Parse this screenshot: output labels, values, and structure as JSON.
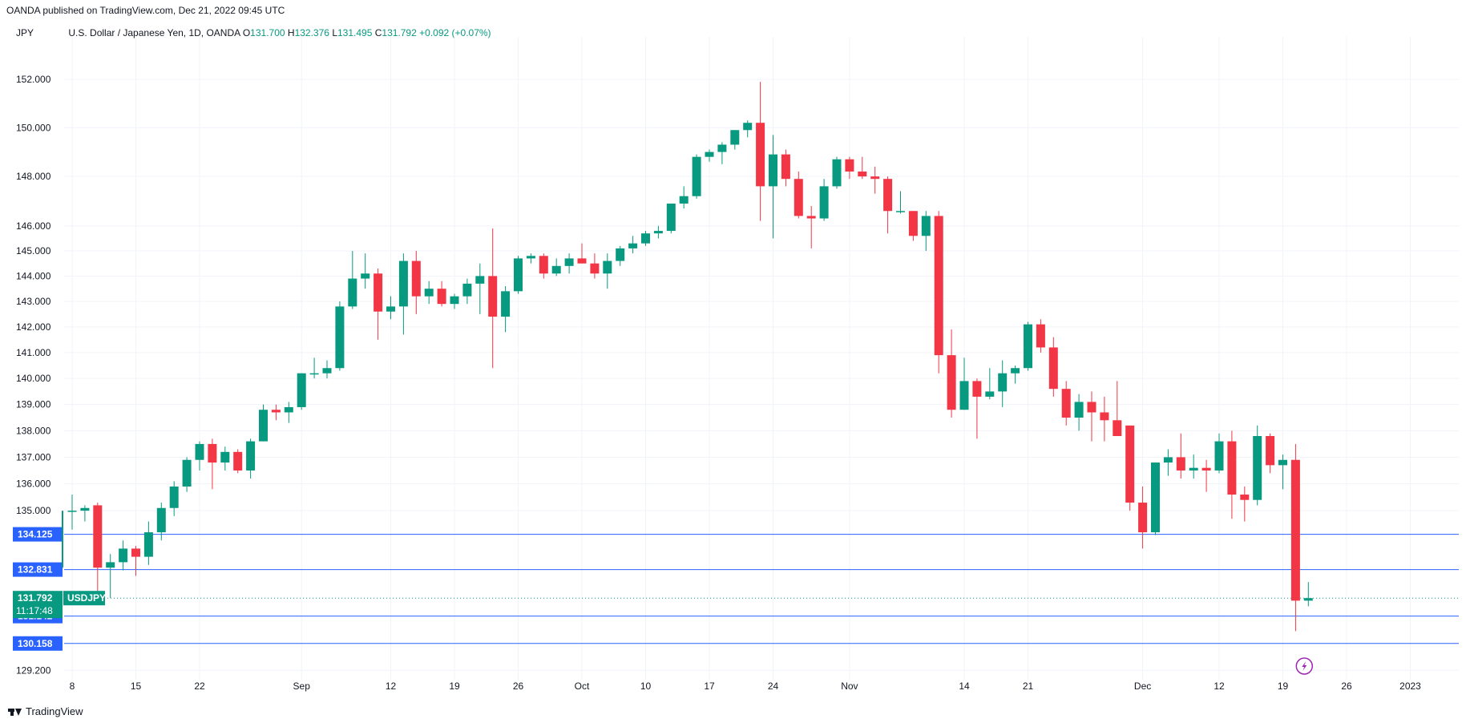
{
  "header": {
    "published": "OANDA published on TradingView.com, Dec 21, 2022 09:45 UTC",
    "unit": "JPY",
    "symbol": "U.S. Dollar / Japanese Yen, 1D, OANDA",
    "o_label": "O",
    "o_value": "131.700",
    "h_label": "H",
    "h_value": "132.376",
    "l_label": "L",
    "l_value": "131.495",
    "c_label": "C",
    "c_value": "131.792",
    "change": "+0.092 (+0.07%)"
  },
  "footer": {
    "brand": "TradingView"
  },
  "colors": {
    "up": "#089981",
    "down": "#f23645",
    "level": "#2962ff",
    "grid": "#f0f3fa"
  },
  "chart_data": {
    "type": "candlestick",
    "title": "U.S. Dollar / Japanese Yen, 1D, OANDA",
    "ylabel": "JPY",
    "ylim": [
      128.3,
      154.2
    ],
    "scale": "log",
    "y_ticks": [
      "152.000",
      "150.000",
      "148.000",
      "146.000",
      "145.000",
      "144.000",
      "143.000",
      "142.000",
      "141.000",
      "140.000",
      "139.000",
      "138.000",
      "137.000",
      "136.000",
      "135.000",
      "129.200"
    ],
    "x_ticks": [
      {
        "label": "8",
        "i": 0
      },
      {
        "label": "15",
        "i": 5
      },
      {
        "label": "22",
        "i": 10
      },
      {
        "label": "Sep",
        "i": 18
      },
      {
        "label": "12",
        "i": 25
      },
      {
        "label": "19",
        "i": 30
      },
      {
        "label": "26",
        "i": 35
      },
      {
        "label": "Oct",
        "i": 40
      },
      {
        "label": "10",
        "i": 45
      },
      {
        "label": "17",
        "i": 50
      },
      {
        "label": "24",
        "i": 55
      },
      {
        "label": "Nov",
        "i": 61
      },
      {
        "label": "14",
        "i": 70
      },
      {
        "label": "21",
        "i": 75
      },
      {
        "label": "Dec",
        "i": 84
      },
      {
        "label": "12",
        "i": 90
      },
      {
        "label": "19",
        "i": 95
      },
      {
        "label": "26",
        "i": 100
      },
      {
        "label": "2023",
        "i": 105
      }
    ],
    "horizontal_levels": [
      "134.125",
      "132.831",
      "131.142",
      "130.158"
    ],
    "last_price": {
      "value": "131.792",
      "symbol": "USDJPY",
      "countdown": "11:17:48"
    },
    "candles": [
      {
        "date": "2022-08-08",
        "o": 135.0,
        "h": 135.6,
        "l": 134.3,
        "c": 135.0
      },
      {
        "date": "2022-08-09",
        "o": 135.0,
        "h": 135.2,
        "l": 134.6,
        "c": 135.1
      },
      {
        "date": "2022-08-10",
        "o": 135.2,
        "h": 135.3,
        "l": 132.0,
        "c": 132.9
      },
      {
        "date": "2022-08-11",
        "o": 132.9,
        "h": 133.4,
        "l": 131.8,
        "c": 133.1
      },
      {
        "date": "2022-08-12",
        "o": 133.1,
        "h": 133.9,
        "l": 132.8,
        "c": 133.6
      },
      {
        "date": "2022-08-15",
        "o": 133.6,
        "h": 133.7,
        "l": 132.6,
        "c": 133.3
      },
      {
        "date": "2022-08-16",
        "o": 133.3,
        "h": 134.6,
        "l": 133.0,
        "c": 134.2
      },
      {
        "date": "2022-08-17",
        "o": 134.2,
        "h": 135.3,
        "l": 133.9,
        "c": 135.1
      },
      {
        "date": "2022-08-18",
        "o": 135.1,
        "h": 136.1,
        "l": 134.8,
        "c": 135.9
      },
      {
        "date": "2022-08-19",
        "o": 135.9,
        "h": 137.0,
        "l": 135.7,
        "c": 136.9
      },
      {
        "date": "2022-08-22",
        "o": 136.9,
        "h": 137.6,
        "l": 136.5,
        "c": 137.5
      },
      {
        "date": "2022-08-23",
        "o": 137.5,
        "h": 137.7,
        "l": 135.8,
        "c": 136.8
      },
      {
        "date": "2022-08-24",
        "o": 136.8,
        "h": 137.4,
        "l": 136.5,
        "c": 137.2
      },
      {
        "date": "2022-08-25",
        "o": 137.2,
        "h": 137.3,
        "l": 136.4,
        "c": 136.5
      },
      {
        "date": "2022-08-26",
        "o": 136.5,
        "h": 137.7,
        "l": 136.2,
        "c": 137.6
      },
      {
        "date": "2022-08-29",
        "o": 137.6,
        "h": 139.0,
        "l": 137.6,
        "c": 138.8
      },
      {
        "date": "2022-08-30",
        "o": 138.8,
        "h": 139.0,
        "l": 138.4,
        "c": 138.7
      },
      {
        "date": "2022-08-31",
        "o": 138.7,
        "h": 139.1,
        "l": 138.3,
        "c": 138.9
      },
      {
        "date": "2022-09-01",
        "o": 138.9,
        "h": 140.2,
        "l": 138.8,
        "c": 140.2
      },
      {
        "date": "2022-09-02",
        "o": 140.2,
        "h": 140.8,
        "l": 140.0,
        "c": 140.2
      },
      {
        "date": "2022-09-05",
        "o": 140.2,
        "h": 140.7,
        "l": 140.0,
        "c": 140.4
      },
      {
        "date": "2022-09-06",
        "o": 140.4,
        "h": 143.0,
        "l": 140.3,
        "c": 142.8
      },
      {
        "date": "2022-09-07",
        "o": 142.8,
        "h": 145.0,
        "l": 142.7,
        "c": 143.9
      },
      {
        "date": "2022-09-08",
        "o": 143.9,
        "h": 144.9,
        "l": 143.5,
        "c": 144.1
      },
      {
        "date": "2022-09-09",
        "o": 144.1,
        "h": 144.3,
        "l": 141.5,
        "c": 142.6
      },
      {
        "date": "2022-09-12",
        "o": 142.6,
        "h": 143.2,
        "l": 142.3,
        "c": 142.8
      },
      {
        "date": "2022-09-13",
        "o": 142.8,
        "h": 144.9,
        "l": 141.7,
        "c": 144.6
      },
      {
        "date": "2022-09-14",
        "o": 144.6,
        "h": 145.0,
        "l": 142.5,
        "c": 143.2
      },
      {
        "date": "2022-09-15",
        "o": 143.2,
        "h": 143.8,
        "l": 142.9,
        "c": 143.5
      },
      {
        "date": "2022-09-16",
        "o": 143.5,
        "h": 143.8,
        "l": 142.8,
        "c": 142.9
      },
      {
        "date": "2022-09-19",
        "o": 142.9,
        "h": 143.3,
        "l": 142.7,
        "c": 143.2
      },
      {
        "date": "2022-09-20",
        "o": 143.2,
        "h": 143.9,
        "l": 142.9,
        "c": 143.7
      },
      {
        "date": "2022-09-21",
        "o": 143.7,
        "h": 144.5,
        "l": 142.5,
        "c": 144.0
      },
      {
        "date": "2022-09-22",
        "o": 144.0,
        "h": 145.9,
        "l": 140.4,
        "c": 142.4
      },
      {
        "date": "2022-09-23",
        "o": 142.4,
        "h": 143.6,
        "l": 141.8,
        "c": 143.4
      },
      {
        "date": "2022-09-26",
        "o": 143.4,
        "h": 144.8,
        "l": 143.3,
        "c": 144.7
      },
      {
        "date": "2022-09-27",
        "o": 144.7,
        "h": 144.9,
        "l": 144.5,
        "c": 144.8
      },
      {
        "date": "2022-09-28",
        "o": 144.8,
        "h": 144.9,
        "l": 143.9,
        "c": 144.1
      },
      {
        "date": "2022-09-29",
        "o": 144.1,
        "h": 144.7,
        "l": 144.0,
        "c": 144.4
      },
      {
        "date": "2022-09-30",
        "o": 144.4,
        "h": 144.9,
        "l": 144.1,
        "c": 144.7
      },
      {
        "date": "2022-10-03",
        "o": 144.7,
        "h": 145.3,
        "l": 144.5,
        "c": 144.5
      },
      {
        "date": "2022-10-04",
        "o": 144.5,
        "h": 144.9,
        "l": 143.9,
        "c": 144.1
      },
      {
        "date": "2022-10-05",
        "o": 144.1,
        "h": 144.9,
        "l": 143.5,
        "c": 144.6
      },
      {
        "date": "2022-10-06",
        "o": 144.6,
        "h": 145.2,
        "l": 144.4,
        "c": 145.1
      },
      {
        "date": "2022-10-07",
        "o": 145.1,
        "h": 145.6,
        "l": 144.9,
        "c": 145.3
      },
      {
        "date": "2022-10-10",
        "o": 145.3,
        "h": 145.8,
        "l": 145.2,
        "c": 145.7
      },
      {
        "date": "2022-10-11",
        "o": 145.7,
        "h": 146.0,
        "l": 145.5,
        "c": 145.8
      },
      {
        "date": "2022-10-12",
        "o": 145.8,
        "h": 146.9,
        "l": 145.7,
        "c": 146.9
      },
      {
        "date": "2022-10-13",
        "o": 146.9,
        "h": 147.6,
        "l": 146.7,
        "c": 147.2
      },
      {
        "date": "2022-10-14",
        "o": 147.2,
        "h": 148.9,
        "l": 147.1,
        "c": 148.8
      },
      {
        "date": "2022-10-17",
        "o": 148.8,
        "h": 149.1,
        "l": 148.6,
        "c": 149.0
      },
      {
        "date": "2022-10-18",
        "o": 149.0,
        "h": 149.4,
        "l": 148.5,
        "c": 149.3
      },
      {
        "date": "2022-10-19",
        "o": 149.3,
        "h": 149.9,
        "l": 149.1,
        "c": 149.9
      },
      {
        "date": "2022-10-20",
        "o": 149.9,
        "h": 150.3,
        "l": 149.6,
        "c": 150.2
      },
      {
        "date": "2022-10-21",
        "o": 150.2,
        "h": 151.9,
        "l": 146.2,
        "c": 147.6
      },
      {
        "date": "2022-10-24",
        "o": 147.6,
        "h": 149.7,
        "l": 145.5,
        "c": 148.9
      },
      {
        "date": "2022-10-25",
        "o": 148.9,
        "h": 149.1,
        "l": 147.6,
        "c": 147.9
      },
      {
        "date": "2022-10-26",
        "o": 147.9,
        "h": 148.2,
        "l": 146.3,
        "c": 146.4
      },
      {
        "date": "2022-10-27",
        "o": 146.4,
        "h": 146.8,
        "l": 145.1,
        "c": 146.3
      },
      {
        "date": "2022-10-28",
        "o": 146.3,
        "h": 147.9,
        "l": 146.2,
        "c": 147.6
      },
      {
        "date": "2022-10-31",
        "o": 147.6,
        "h": 148.8,
        "l": 147.5,
        "c": 148.7
      },
      {
        "date": "2022-11-01",
        "o": 148.7,
        "h": 148.8,
        "l": 147.9,
        "c": 148.2
      },
      {
        "date": "2022-11-02",
        "o": 148.2,
        "h": 148.8,
        "l": 147.9,
        "c": 148.0
      },
      {
        "date": "2022-11-03",
        "o": 148.0,
        "h": 148.4,
        "l": 147.3,
        "c": 147.9
      },
      {
        "date": "2022-11-04",
        "o": 147.9,
        "h": 148.0,
        "l": 145.7,
        "c": 146.6
      },
      {
        "date": "2022-11-07",
        "o": 146.6,
        "h": 147.4,
        "l": 146.5,
        "c": 146.6
      },
      {
        "date": "2022-11-08",
        "o": 146.6,
        "h": 146.6,
        "l": 145.4,
        "c": 145.6
      },
      {
        "date": "2022-11-09",
        "o": 145.6,
        "h": 146.6,
        "l": 145.0,
        "c": 146.4
      },
      {
        "date": "2022-11-10",
        "o": 146.4,
        "h": 146.6,
        "l": 140.2,
        "c": 140.9
      },
      {
        "date": "2022-11-11",
        "o": 140.9,
        "h": 141.9,
        "l": 138.5,
        "c": 138.8
      },
      {
        "date": "2022-11-14",
        "o": 138.8,
        "h": 140.8,
        "l": 138.8,
        "c": 139.9
      },
      {
        "date": "2022-11-15",
        "o": 139.9,
        "h": 140.0,
        "l": 137.7,
        "c": 139.3
      },
      {
        "date": "2022-11-16",
        "o": 139.3,
        "h": 140.4,
        "l": 139.2,
        "c": 139.5
      },
      {
        "date": "2022-11-17",
        "o": 139.5,
        "h": 140.7,
        "l": 138.9,
        "c": 140.2
      },
      {
        "date": "2022-11-18",
        "o": 140.2,
        "h": 140.5,
        "l": 139.8,
        "c": 140.4
      },
      {
        "date": "2022-11-21",
        "o": 140.4,
        "h": 142.2,
        "l": 140.3,
        "c": 142.1
      },
      {
        "date": "2022-11-22",
        "o": 142.1,
        "h": 142.3,
        "l": 141.0,
        "c": 141.2
      },
      {
        "date": "2022-11-23",
        "o": 141.2,
        "h": 141.6,
        "l": 139.3,
        "c": 139.6
      },
      {
        "date": "2022-11-24",
        "o": 139.6,
        "h": 139.9,
        "l": 138.2,
        "c": 138.5
      },
      {
        "date": "2022-11-25",
        "o": 138.5,
        "h": 139.4,
        "l": 138.0,
        "c": 139.1
      },
      {
        "date": "2022-11-28",
        "o": 139.1,
        "h": 139.5,
        "l": 137.6,
        "c": 138.7
      },
      {
        "date": "2022-11-29",
        "o": 138.7,
        "h": 139.3,
        "l": 137.6,
        "c": 138.4
      },
      {
        "date": "2022-11-30",
        "o": 138.4,
        "h": 139.9,
        "l": 137.8,
        "c": 137.8
      },
      {
        "date": "2022-12-01",
        "o": 138.2,
        "h": 138.2,
        "l": 135.0,
        "c": 135.3
      },
      {
        "date": "2022-12-02",
        "o": 135.3,
        "h": 135.9,
        "l": 133.6,
        "c": 134.2
      },
      {
        "date": "2022-12-05",
        "o": 134.2,
        "h": 136.8,
        "l": 134.1,
        "c": 136.8
      },
      {
        "date": "2022-12-06",
        "o": 136.8,
        "h": 137.3,
        "l": 136.3,
        "c": 137.0
      },
      {
        "date": "2022-12-07",
        "o": 137.0,
        "h": 137.9,
        "l": 136.2,
        "c": 136.5
      },
      {
        "date": "2022-12-08",
        "o": 136.5,
        "h": 137.1,
        "l": 136.2,
        "c": 136.6
      },
      {
        "date": "2022-12-09",
        "o": 136.6,
        "h": 136.9,
        "l": 135.7,
        "c": 136.5
      },
      {
        "date": "2022-12-12",
        "o": 136.5,
        "h": 137.9,
        "l": 136.4,
        "c": 137.6
      },
      {
        "date": "2022-12-13",
        "o": 137.6,
        "h": 138.0,
        "l": 134.7,
        "c": 135.6
      },
      {
        "date": "2022-12-14",
        "o": 135.6,
        "h": 135.9,
        "l": 134.6,
        "c": 135.4
      },
      {
        "date": "2022-12-15",
        "o": 135.4,
        "h": 138.2,
        "l": 135.2,
        "c": 137.8
      },
      {
        "date": "2022-12-16",
        "o": 137.8,
        "h": 137.9,
        "l": 136.4,
        "c": 136.7
      },
      {
        "date": "2022-12-19",
        "o": 136.7,
        "h": 137.1,
        "l": 135.8,
        "c": 136.9
      },
      {
        "date": "2022-12-20",
        "o": 136.9,
        "h": 137.5,
        "l": 130.6,
        "c": 131.7
      },
      {
        "date": "2022-12-21",
        "o": 131.7,
        "h": 132.376,
        "l": 131.495,
        "c": 131.792
      }
    ]
  }
}
